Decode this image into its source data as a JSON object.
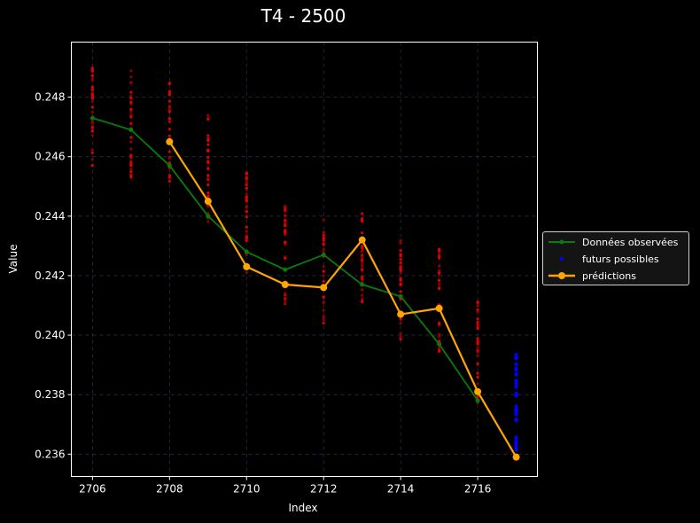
{
  "chart_data": {
    "type": "line",
    "title": "T4 - 2500",
    "xlabel": "Index",
    "ylabel": "Value",
    "xlim": [
      2705.45,
      2717.55
    ],
    "ylim": [
      0.23525,
      0.24985
    ],
    "x_ticks": [
      2706,
      2708,
      2710,
      2712,
      2714,
      2716
    ],
    "y_ticks": [
      0.236,
      0.238,
      0.24,
      0.242,
      0.244,
      0.246,
      0.248
    ],
    "y_tick_labels": [
      "0.236",
      "0.238",
      "0.240",
      "0.242",
      "0.244",
      "0.246",
      "0.248"
    ],
    "grid": true,
    "legend_position": "center right (outside axes)",
    "series": [
      {
        "name": "Données observées",
        "type": "line",
        "color": "#0a7a0a",
        "x": [
          2706,
          2707,
          2708,
          2709,
          2710,
          2711,
          2712,
          2713,
          2714,
          2715,
          2716
        ],
        "values": [
          0.2473,
          0.2469,
          0.2457,
          0.244,
          0.2428,
          0.2422,
          0.2427,
          0.2417,
          0.2413,
          0.2397,
          0.2378
        ]
      },
      {
        "name": "futurs possibles",
        "type": "scatter",
        "color": "#0000ff",
        "x": [
          2717
        ],
        "range": [
          [
            0.2361,
            0.2395
          ]
        ]
      },
      {
        "name": "prédictions",
        "type": "line",
        "color": "#ffa500",
        "x": [
          2708,
          2709,
          2710,
          2711,
          2712,
          2713,
          2714,
          2715,
          2716,
          2717
        ],
        "values": [
          0.2465,
          0.2445,
          0.2423,
          0.2417,
          0.2416,
          0.2432,
          0.2407,
          0.2409,
          0.2381,
          0.2359
        ]
      }
    ],
    "sample_ranges_red": {
      "color": "#cc0000",
      "x": [
        2706,
        2707,
        2708,
        2709,
        2710,
        2711,
        2712,
        2713,
        2714,
        2715,
        2716
      ],
      "ranges": [
        [
          0.2457,
          0.2492
        ],
        [
          0.2453,
          0.2489
        ],
        [
          0.2449,
          0.2485
        ],
        [
          0.2438,
          0.2474
        ],
        [
          0.2421,
          0.2456
        ],
        [
          0.2409,
          0.2445
        ],
        [
          0.2404,
          0.2439
        ],
        [
          0.2408,
          0.2443
        ],
        [
          0.2397,
          0.2432
        ],
        [
          0.2394,
          0.2429
        ],
        [
          0.2377,
          0.2414
        ]
      ]
    }
  },
  "legend": {
    "items": [
      {
        "label": "Données observées"
      },
      {
        "label": "futurs possibles"
      },
      {
        "label": "prédictions"
      }
    ]
  }
}
